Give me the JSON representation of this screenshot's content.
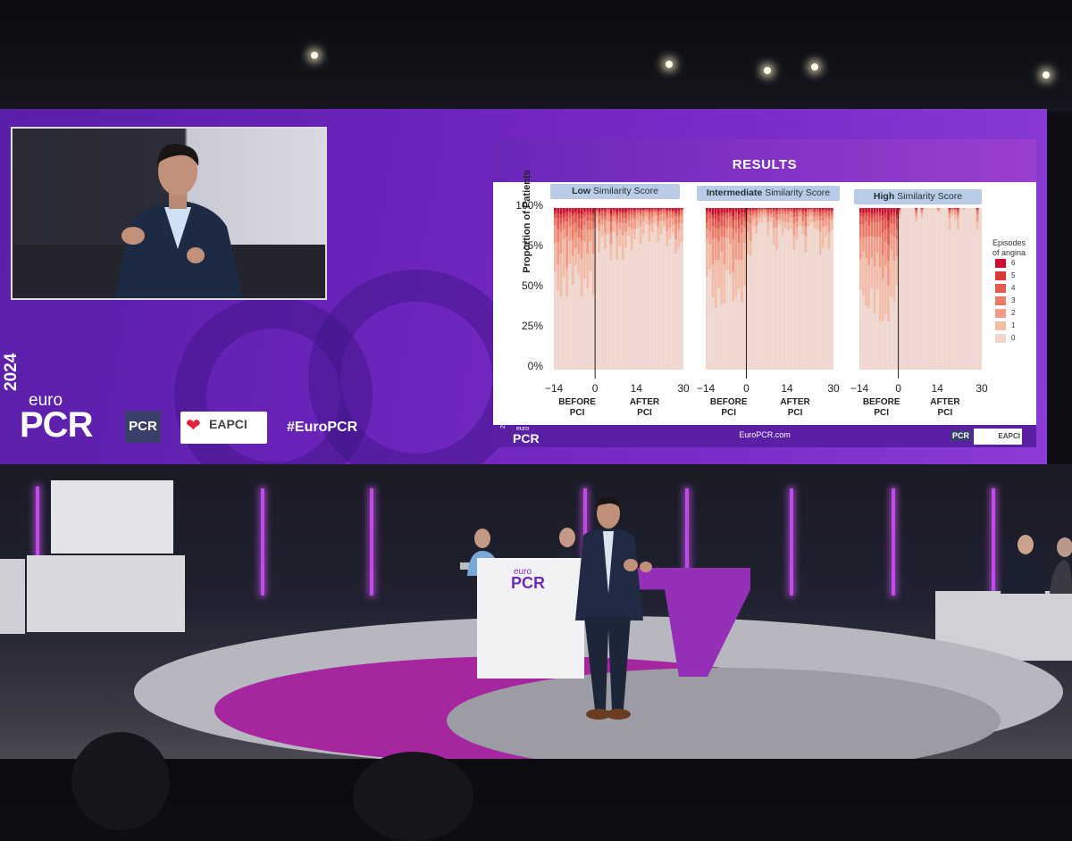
{
  "event": {
    "logo_year": "2024",
    "logo_euro": "euro",
    "logo_pcr": "PCR",
    "pcr_badge": "PCR",
    "eapci_badge": "EAPCI",
    "hashtag": "#EuroPCR"
  },
  "slide": {
    "title": "RESULTS",
    "footer_site": "EuroPCR.com",
    "footer_year": "2024",
    "footer_euro": "euro",
    "footer_pcr": "PCR",
    "footer_badge_pcr": "PCR",
    "footer_badge_eapci": "EAPCI",
    "panels": [
      {
        "chip_bold": "Low",
        "chip_rest": " Similarity Score"
      },
      {
        "chip_bold": "Intermediate",
        "chip_rest": " Similarity Score"
      },
      {
        "chip_bold": "High",
        "chip_rest": " Similarity Score"
      }
    ]
  },
  "podium": {
    "euro": "euro",
    "pcr": "PCR"
  },
  "colors": {
    "wall": "#6a23b9",
    "accent": "#a6269f",
    "slide_header": "#7a2fc4"
  },
  "chart_data": {
    "type": "bar",
    "stacked": true,
    "ylabel": "Proportion of Patients",
    "yticks": [
      "100%",
      "75%",
      "50%",
      "25%",
      "0%"
    ],
    "xticks": [
      "-14",
      "0",
      "14",
      "30"
    ],
    "xlabels": [
      "BEFORE\nPCI",
      "AFTER\nPCI"
    ],
    "legend_title": "Episodes\nof angina",
    "legend": [
      {
        "label": "6",
        "color": "#c8102e"
      },
      {
        "label": "5",
        "color": "#dc3a3a"
      },
      {
        "label": "4",
        "color": "#e45a4f"
      },
      {
        "label": "3",
        "color": "#ec7c68"
      },
      {
        "label": "2",
        "color": "#f19c86"
      },
      {
        "label": "1",
        "color": "#f3bca6"
      },
      {
        "label": "0",
        "color": "#f1d6ce"
      }
    ],
    "panels": [
      {
        "name": "Low Similarity Score",
        "before_zero_share": 0.55,
        "after_zero_share": 0.78
      },
      {
        "name": "Intermediate Similarity Score",
        "before_zero_share": 0.5,
        "after_zero_share": 0.82
      },
      {
        "name": "High Similarity Score",
        "before_zero_share": 0.4,
        "after_zero_share": 0.99
      }
    ]
  }
}
